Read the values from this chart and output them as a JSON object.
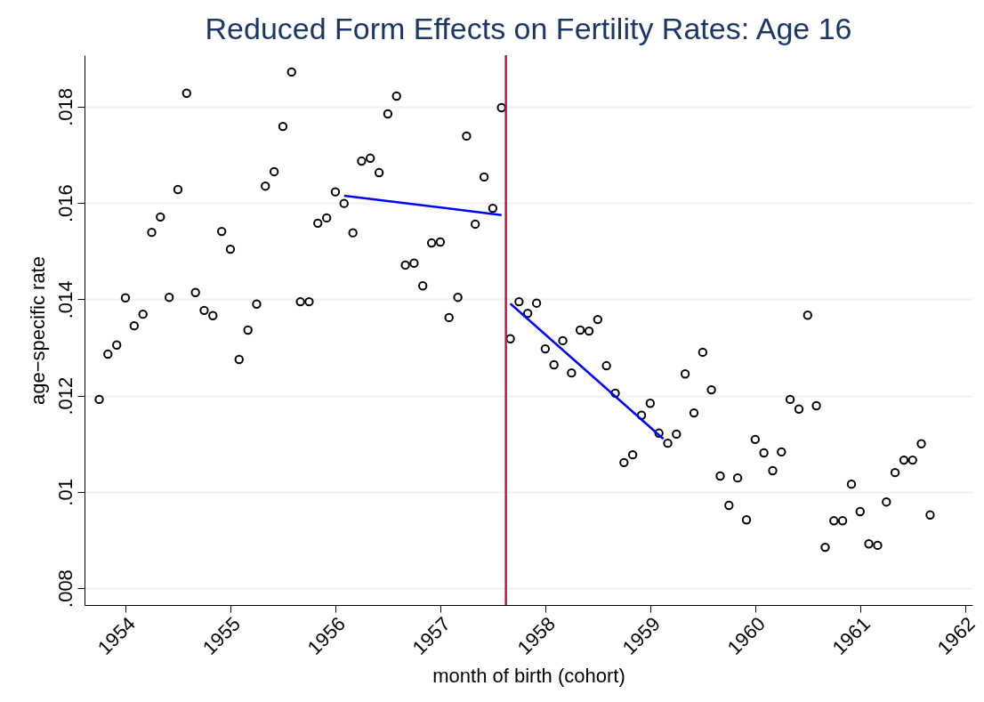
{
  "chart_data": {
    "type": "scatter",
    "title": "Reduced Form Effects on Fertility Rates: Age 16",
    "xlabel": "month of birth (cohort)",
    "ylabel": "age−specific rate",
    "xlim": [
      1953.61,
      1962.07
    ],
    "xticks": [
      1954,
      1955,
      1956,
      1957,
      1958,
      1959,
      1960,
      1961,
      1962
    ],
    "ylim": [
      0.00765,
      0.01907
    ],
    "yticks": [
      {
        "value": 0.008,
        "label": ".008"
      },
      {
        "value": 0.01,
        "label": ".01"
      },
      {
        "value": 0.012,
        "label": ".012"
      },
      {
        "value": 0.014,
        "label": ".014"
      },
      {
        "value": 0.016,
        "label": ".016"
      },
      {
        "value": 0.018,
        "label": ".018"
      }
    ],
    "grid": "y",
    "series": [
      {
        "marker": "circle",
        "color": "#000000",
        "x": [
          1953.75,
          1953.833,
          1953.917,
          1954,
          1954.083,
          1954.167,
          1954.25,
          1954.333,
          1954.417,
          1954.5,
          1954.583,
          1954.667,
          1954.75,
          1954.833,
          1954.917,
          1955,
          1955.083,
          1955.167,
          1955.25,
          1955.333,
          1955.417,
          1955.5,
          1955.583,
          1955.667,
          1955.75,
          1955.833,
          1955.917,
          1956,
          1956.083,
          1956.167,
          1956.25,
          1956.333,
          1956.417,
          1956.5,
          1956.583,
          1956.667,
          1956.75,
          1956.833,
          1956.917,
          1957,
          1957.083,
          1957.167,
          1957.25,
          1957.333,
          1957.417,
          1957.5,
          1957.583,
          1957.667,
          1957.75,
          1957.833,
          1957.917,
          1958,
          1958.083,
          1958.167,
          1958.25,
          1958.333,
          1958.417,
          1958.5,
          1958.583,
          1958.667,
          1958.75,
          1958.833,
          1958.917,
          1959,
          1959.083,
          1959.167,
          1959.25,
          1959.333,
          1959.417,
          1959.5,
          1959.583,
          1959.667,
          1959.75,
          1959.833,
          1959.917,
          1960,
          1960.083,
          1960.167,
          1960.25,
          1960.333,
          1960.417,
          1960.5,
          1960.583,
          1960.667,
          1960.75,
          1960.833,
          1960.917,
          1961,
          1961.083,
          1961.167,
          1961.25,
          1961.333,
          1961.417,
          1961.5,
          1961.583,
          1961.667
        ],
        "values": [
          0.01192,
          0.01286,
          0.01305,
          0.01403,
          0.01345,
          0.01369,
          0.01539,
          0.01571,
          0.01404,
          0.01628,
          0.01828,
          0.01414,
          0.01377,
          0.01366,
          0.01541,
          0.01504,
          0.01275,
          0.01336,
          0.0139,
          0.01635,
          0.01665,
          0.01759,
          0.01872,
          0.01395,
          0.01395,
          0.01558,
          0.01569,
          0.01623,
          0.01599,
          0.01538,
          0.01687,
          0.01693,
          0.01663,
          0.01785,
          0.01822,
          0.01471,
          0.01475,
          0.01428,
          0.01517,
          0.01519,
          0.01362,
          0.01404,
          0.01739,
          0.01556,
          0.01654,
          0.01589,
          0.01798,
          0.01318,
          0.01395,
          0.01371,
          0.01392,
          0.01297,
          0.01264,
          0.01314,
          0.01247,
          0.01336,
          0.01334,
          0.01358,
          0.01262,
          0.01205,
          0.01061,
          0.01077,
          0.01159,
          0.01184,
          0.01122,
          0.01101,
          0.0112,
          0.01245,
          0.01164,
          0.0129,
          0.01212,
          0.01033,
          0.00972,
          0.01029,
          0.00942,
          0.01109,
          0.01081,
          0.01044,
          0.01083,
          0.01192,
          0.01172,
          0.01367,
          0.01179,
          0.00885,
          0.0094,
          0.0094,
          0.01016,
          0.00959,
          0.00892,
          0.00889,
          0.00979,
          0.0104,
          0.01066,
          0.01066,
          0.011,
          0.00952
        ]
      },
      {
        "type": "line",
        "color": "#0000ff",
        "x": [
          1956.083,
          1957.583
        ],
        "values": [
          0.01615,
          0.01575
        ]
      },
      {
        "type": "line",
        "color": "#0000ff",
        "x": [
          1957.667,
          1959.125
        ],
        "values": [
          0.01391,
          0.0111
        ]
      }
    ],
    "ref_lines": [
      {
        "axis": "x",
        "value": 1957.625,
        "color": "#c0143c"
      }
    ]
  }
}
